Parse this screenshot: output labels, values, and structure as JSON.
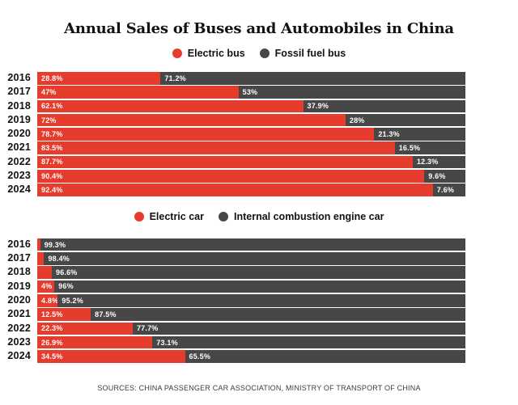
{
  "title": "Annual Sales of Buses and Automobiles in China",
  "source": "SOURCES: CHINA PASSENGER CAR ASSOCIATION, MINISTRY OF TRANSPORT OF CHINA",
  "colors": {
    "electric_red": "#e63c2d",
    "fossil_gray": "#474747"
  },
  "chart_data": [
    {
      "type": "bar",
      "orientation": "horizontal",
      "stacked": true,
      "xlim": [
        0,
        100
      ],
      "grid": false,
      "legend_position": "top-center",
      "legend": [
        {
          "label": "Electric bus",
          "color": "#e63c2d"
        },
        {
          "label": "Fossil fuel bus",
          "color": "#474747"
        }
      ],
      "categories": [
        "2016",
        "2017",
        "2018",
        "2019",
        "2020",
        "2021",
        "2022",
        "2023",
        "2024"
      ],
      "series": [
        {
          "name": "Electric bus",
          "color": "#e63c2d",
          "values": [
            28.8,
            47,
            62.1,
            72,
            78.7,
            83.5,
            87.7,
            90.4,
            92.4
          ],
          "labels": [
            "28.8%",
            "47%",
            "62.1%",
            "72%",
            "78.7%",
            "83.5%",
            "87.7%",
            "90.4%",
            "92.4%"
          ]
        },
        {
          "name": "Fossil fuel bus",
          "color": "#474747",
          "values": [
            71.2,
            53,
            37.9,
            28,
            21.3,
            16.5,
            12.3,
            9.6,
            7.6
          ],
          "labels": [
            "71.2%",
            "53%",
            "37.9%",
            "28%",
            "21.3%",
            "16.5%",
            "12.3%",
            "9.6%",
            "7.6%"
          ]
        }
      ]
    },
    {
      "type": "bar",
      "orientation": "horizontal",
      "stacked": true,
      "xlim": [
        0,
        100
      ],
      "grid": false,
      "legend_position": "top-center",
      "legend": [
        {
          "label": "Electric car",
          "color": "#e63c2d"
        },
        {
          "label": "Internal combustion engine car",
          "color": "#474747"
        }
      ],
      "categories": [
        "2016",
        "2017",
        "2018",
        "2019",
        "2020",
        "2021",
        "2022",
        "2023",
        "2024"
      ],
      "series": [
        {
          "name": "Electric car",
          "color": "#e63c2d",
          "values": [
            0.7,
            1.6,
            3.4,
            4,
            4.8,
            12.5,
            22.3,
            26.9,
            34.5
          ],
          "labels": [
            "",
            "",
            "",
            "4%",
            "4.8%",
            "12.5%",
            "22.3%",
            "26.9%",
            "34.5%"
          ]
        },
        {
          "name": "Internal combustion engine car",
          "color": "#474747",
          "values": [
            99.3,
            98.4,
            96.6,
            96,
            95.2,
            87.5,
            77.7,
            73.1,
            65.5
          ],
          "labels": [
            "99.3%",
            "98.4%",
            "96.6%",
            "96%",
            "95.2%",
            "87.5%",
            "77.7%",
            "73.1%",
            "65.5%"
          ]
        }
      ]
    }
  ]
}
